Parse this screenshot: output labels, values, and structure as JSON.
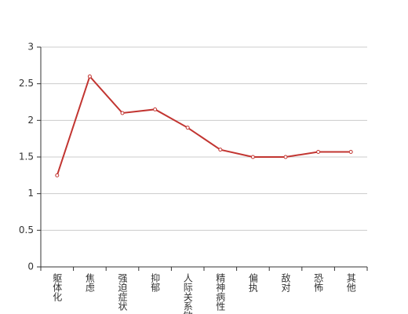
{
  "chart_data": {
    "type": "line",
    "categories": [
      "躯体化",
      "焦虑",
      "强迫症状",
      "抑郁",
      "人际关系敏感",
      "精神病性",
      "偏执",
      "敌对",
      "恐怖",
      "其他"
    ],
    "series": [
      {
        "color": "#c23531",
        "values": [
          1.25,
          2.6,
          2.1,
          2.15,
          1.9,
          1.6,
          1.5,
          1.5,
          1.57,
          1.57
        ]
      }
    ],
    "ylim": [
      0,
      3
    ],
    "yticks": [
      0,
      0.5,
      1,
      1.5,
      2,
      2.5,
      3
    ],
    "grid": true
  }
}
